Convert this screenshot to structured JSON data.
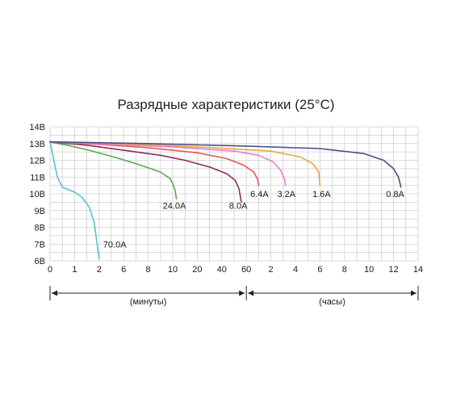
{
  "chart_data": {
    "type": "line",
    "title": "Разрядные характеристики (25°C)",
    "xlabel": "",
    "ylabel": "",
    "y_ticks": [
      "6В",
      "7В",
      "8В",
      "9В",
      "10В",
      "11В",
      "12В",
      "13В",
      "14В"
    ],
    "ylim": [
      6,
      14
    ],
    "x_ticks": [
      "0",
      "1",
      "2",
      "6",
      "8",
      "10",
      "20",
      "40",
      "60",
      "2",
      "4",
      "6",
      "8",
      "10",
      "12",
      "14"
    ],
    "x_periods": [
      {
        "label": "(минуты)",
        "from_tick": 0,
        "to_tick": 8
      },
      {
        "label": "(часы)",
        "from_tick": 8,
        "to_tick": 15
      }
    ],
    "grid": true,
    "series": [
      {
        "name": "70.0A",
        "color": "#5bbfd6",
        "points": [
          [
            0,
            13.1
          ],
          [
            0.1,
            12.4
          ],
          [
            0.3,
            11.0
          ],
          [
            0.5,
            10.4
          ],
          [
            1.0,
            10.1
          ],
          [
            1.3,
            9.8
          ],
          [
            1.6,
            9.2
          ],
          [
            1.8,
            8.3
          ],
          [
            2.0,
            6.1
          ]
        ]
      },
      {
        "name": "24.0A",
        "color": "#5aa84e",
        "points": [
          [
            0,
            13.1
          ],
          [
            0.7,
            12.9
          ],
          [
            1.6,
            12.6
          ],
          [
            2.6,
            12.2
          ],
          [
            3.5,
            11.8
          ],
          [
            4.5,
            11.3
          ],
          [
            4.9,
            10.9
          ],
          [
            5.0,
            10.6
          ],
          [
            5.1,
            10.2
          ],
          [
            5.15,
            9.7
          ]
        ]
      },
      {
        "name": "8.0A",
        "color": "#8e2d5e",
        "points": [
          [
            0,
            13.1
          ],
          [
            1.5,
            12.9
          ],
          [
            3.0,
            12.6
          ],
          [
            4.5,
            12.3
          ],
          [
            5.5,
            12.0
          ],
          [
            6.5,
            11.6
          ],
          [
            7.2,
            11.2
          ],
          [
            7.55,
            10.8
          ],
          [
            7.7,
            10.3
          ],
          [
            7.8,
            9.5
          ]
        ]
      },
      {
        "name": "6.4A",
        "color": "#e05a5a",
        "points": [
          [
            0,
            13.1
          ],
          [
            2.0,
            12.95
          ],
          [
            4.0,
            12.75
          ],
          [
            6.0,
            12.45
          ],
          [
            7.2,
            12.1
          ],
          [
            7.9,
            11.7
          ],
          [
            8.3,
            11.3
          ],
          [
            8.45,
            10.9
          ],
          [
            8.5,
            10.5
          ]
        ]
      },
      {
        "name": "3.2A",
        "color": "#e67fc8",
        "points": [
          [
            0,
            13.1
          ],
          [
            2.5,
            12.95
          ],
          [
            5.0,
            12.8
          ],
          [
            7.5,
            12.55
          ],
          [
            8.5,
            12.3
          ],
          [
            9.1,
            11.9
          ],
          [
            9.4,
            11.4
          ],
          [
            9.55,
            10.9
          ],
          [
            9.6,
            10.5
          ]
        ]
      },
      {
        "name": "1.6A",
        "color": "#e9a53f",
        "points": [
          [
            0,
            13.1
          ],
          [
            3.0,
            13.0
          ],
          [
            6.0,
            12.8
          ],
          [
            9.0,
            12.55
          ],
          [
            10.2,
            12.2
          ],
          [
            10.7,
            11.8
          ],
          [
            10.95,
            11.3
          ],
          [
            11.0,
            10.5
          ]
        ]
      },
      {
        "name": "0.8A",
        "color": "#4b4d7e",
        "points": [
          [
            0,
            13.1
          ],
          [
            4.0,
            13.0
          ],
          [
            8.0,
            12.85
          ],
          [
            11.0,
            12.7
          ],
          [
            12.8,
            12.4
          ],
          [
            13.6,
            12.0
          ],
          [
            14.0,
            11.5
          ],
          [
            14.2,
            11.0
          ],
          [
            14.3,
            10.4
          ]
        ]
      }
    ]
  }
}
